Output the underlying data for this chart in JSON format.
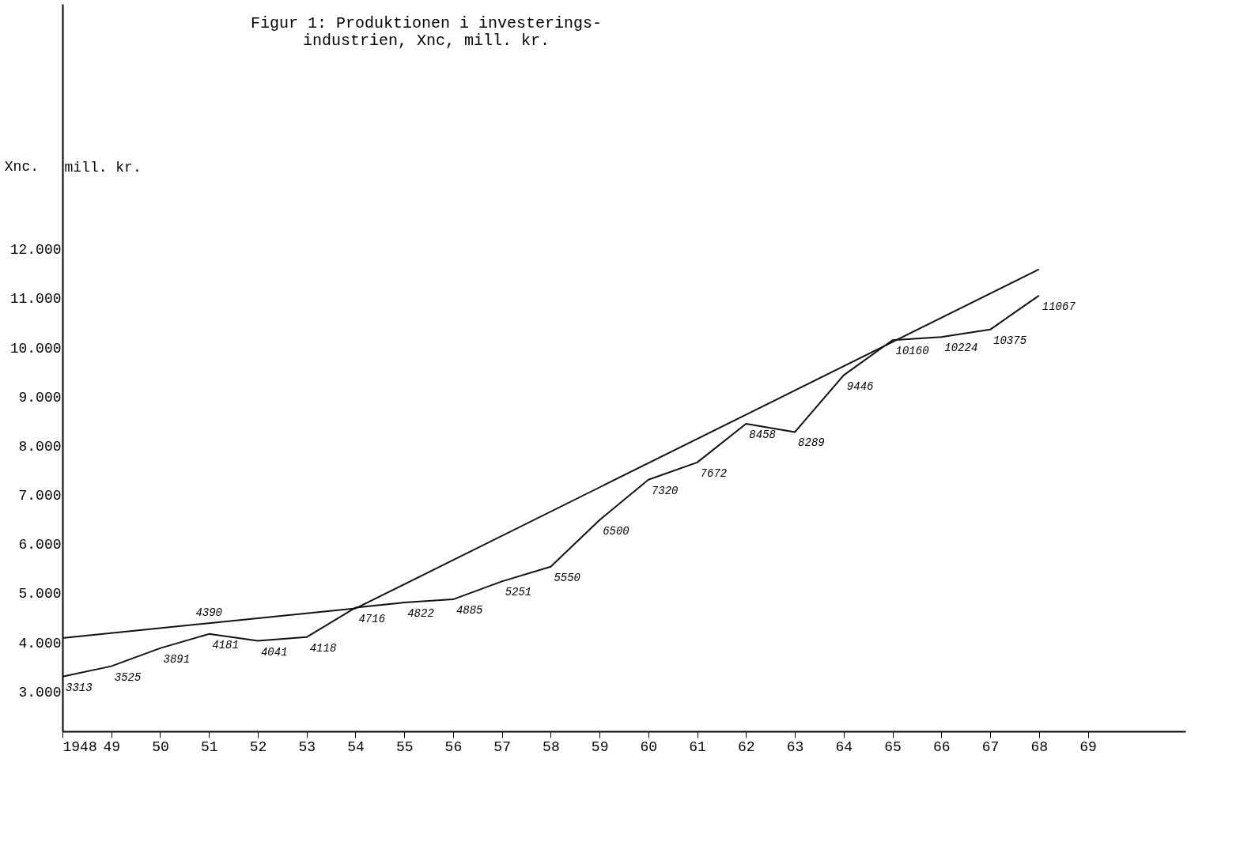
{
  "chart_data": {
    "type": "line",
    "title": "Figur 1: Produktionen i investerings-\nindustrien, Xnc, mill. kr.",
    "ylabel": "mill. kr.",
    "x": [
      1948,
      1949,
      1950,
      1951,
      1952,
      1953,
      1954,
      1955,
      1956,
      1957,
      1958,
      1959,
      1960,
      1961,
      1962,
      1963,
      1964,
      1965,
      1966,
      1967,
      1968
    ],
    "series": [
      {
        "color": "#111111",
        "values": [
          3313,
          3525,
          3891,
          4181,
          4041,
          4118,
          4716,
          4822,
          4885,
          5251,
          5550,
          6500,
          7320,
          7672,
          8458,
          8289,
          9446,
          10160,
          10224,
          10375,
          11067
        ],
        "data_labels": true
      },
      {
        "color": "#111111",
        "x": [
          1948,
          1954,
          1968
        ],
        "values": [
          4100,
          4700,
          11600
        ]
      }
    ],
    "annotations": [
      "Xnc.",
      {
        "text": "4390",
        "x": 1951,
        "y": 4390
      }
    ],
    "xlim": [
      1948,
      1971
    ],
    "ylim": [
      2200,
      17000
    ],
    "xticks": [
      {
        "value": 1948,
        "label": "1948"
      },
      {
        "value": 1949,
        "label": "49"
      },
      {
        "value": 1950,
        "label": "50"
      },
      {
        "value": 1951,
        "label": "51"
      },
      {
        "value": 1952,
        "label": "52"
      },
      {
        "value": 1953,
        "label": "53"
      },
      {
        "value": 1954,
        "label": "54"
      },
      {
        "value": 1955,
        "label": "55"
      },
      {
        "value": 1956,
        "label": "56"
      },
      {
        "value": 1957,
        "label": "57"
      },
      {
        "value": 1958,
        "label": "58"
      },
      {
        "value": 1959,
        "label": "59"
      },
      {
        "value": 1960,
        "label": "60"
      },
      {
        "value": 1961,
        "label": "61"
      },
      {
        "value": 1962,
        "label": "62"
      },
      {
        "value": 1963,
        "label": "63"
      },
      {
        "value": 1964,
        "label": "64"
      },
      {
        "value": 1965,
        "label": "65"
      },
      {
        "value": 1966,
        "label": "66"
      },
      {
        "value": 1967,
        "label": "67"
      },
      {
        "value": 1968,
        "label": "68"
      },
      {
        "value": 1969,
        "label": "69"
      }
    ],
    "yticks": [
      {
        "value": 3000,
        "label": "3.000"
      },
      {
        "value": 4000,
        "label": "4.000"
      },
      {
        "value": 5000,
        "label": "5.000"
      },
      {
        "value": 6000,
        "label": "6.000"
      },
      {
        "value": 7000,
        "label": "7.000"
      },
      {
        "value": 8000,
        "label": "8.000"
      },
      {
        "value": 9000,
        "label": "9.000"
      },
      {
        "value": 10000,
        "label": "10.000"
      },
      {
        "value": 11000,
        "label": "11.000"
      },
      {
        "value": 12000,
        "label": "12.000"
      }
    ],
    "grid": false
  }
}
